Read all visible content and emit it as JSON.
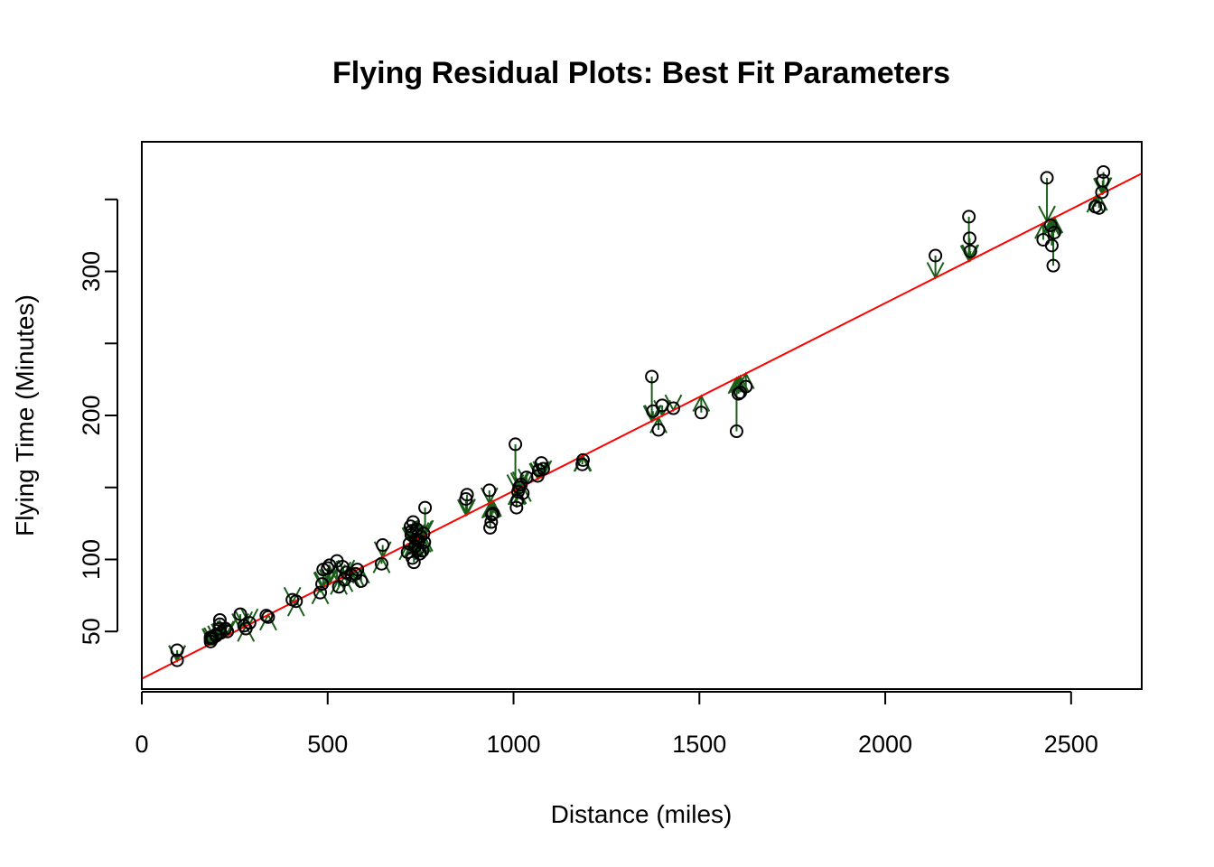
{
  "chart_data": {
    "type": "scatter",
    "title": "Flying Residual Plots: Best Fit Parameters",
    "xlabel": "Distance (miles)",
    "ylabel": "Flying Time (Minutes)",
    "xlim": [
      0,
      2690
    ],
    "ylim": [
      10,
      390
    ],
    "x_ticks": [
      0,
      500,
      1000,
      1500,
      2000,
      2500
    ],
    "x_tick_labels": [
      "0",
      "500",
      "1000",
      "1500",
      "2000",
      "2500"
    ],
    "y_ticks": [
      50,
      100,
      150,
      200,
      250,
      300,
      350
    ],
    "y_tick_labels": [
      "50",
      "100",
      "",
      "200",
      "",
      "300",
      ""
    ],
    "grid": false,
    "legend": "none",
    "colors": {
      "points": "#000000",
      "fit_line": "#ff0000",
      "residual_arrows": "#1a5e1a"
    },
    "fit_line": {
      "intercept": 17.2,
      "slope": 0.1304
    },
    "series": [
      {
        "style": "open-circle",
        "points": [
          [
            95,
            37
          ],
          [
            95,
            30
          ],
          [
            185,
            43
          ],
          [
            185,
            45
          ],
          [
            185,
            46
          ],
          [
            190,
            45
          ],
          [
            200,
            47
          ],
          [
            200,
            48
          ],
          [
            210,
            52
          ],
          [
            210,
            55
          ],
          [
            210,
            58
          ],
          [
            212,
            49
          ],
          [
            225,
            52
          ],
          [
            230,
            50
          ],
          [
            265,
            62
          ],
          [
            275,
            54
          ],
          [
            280,
            52
          ],
          [
            290,
            56
          ],
          [
            335,
            61
          ],
          [
            340,
            60
          ],
          [
            405,
            72
          ],
          [
            415,
            71
          ],
          [
            480,
            77
          ],
          [
            485,
            83
          ],
          [
            488,
            93
          ],
          [
            500,
            94
          ],
          [
            505,
            96
          ],
          [
            525,
            99
          ],
          [
            530,
            81
          ],
          [
            540,
            95
          ],
          [
            545,
            86
          ],
          [
            550,
            91
          ],
          [
            565,
            89
          ],
          [
            575,
            90
          ],
          [
            580,
            93
          ],
          [
            590,
            85
          ],
          [
            645,
            97
          ],
          [
            648,
            110
          ],
          [
            715,
            105
          ],
          [
            720,
            111
          ],
          [
            723,
            123
          ],
          [
            725,
            117
          ],
          [
            727,
            120
          ],
          [
            728,
            101
          ],
          [
            730,
            126
          ],
          [
            732,
            98
          ],
          [
            735,
            109
          ],
          [
            738,
            114
          ],
          [
            740,
            121
          ],
          [
            742,
            107
          ],
          [
            745,
            113
          ],
          [
            748,
            104
          ],
          [
            750,
            116
          ],
          [
            755,
            106
          ],
          [
            758,
            118
          ],
          [
            760,
            112
          ],
          [
            762,
            136
          ],
          [
            872,
            142
          ],
          [
            875,
            145
          ],
          [
            935,
            148
          ],
          [
            937,
            122
          ],
          [
            940,
            126
          ],
          [
            942,
            131
          ],
          [
            945,
            132
          ],
          [
            1005,
            180
          ],
          [
            1008,
            136
          ],
          [
            1010,
            141
          ],
          [
            1012,
            147
          ],
          [
            1015,
            150
          ],
          [
            1020,
            152
          ],
          [
            1025,
            146
          ],
          [
            1035,
            157
          ],
          [
            1065,
            158
          ],
          [
            1068,
            162
          ],
          [
            1075,
            167
          ],
          [
            1080,
            163
          ],
          [
            1185,
            166
          ],
          [
            1187,
            169
          ],
          [
            1372,
            227
          ],
          [
            1375,
            203
          ],
          [
            1390,
            190
          ],
          [
            1400,
            207
          ],
          [
            1430,
            205
          ],
          [
            1505,
            202
          ],
          [
            1600,
            189
          ],
          [
            1605,
            215
          ],
          [
            1610,
            216
          ],
          [
            1625,
            220
          ],
          [
            2135,
            311
          ],
          [
            2225,
            338
          ],
          [
            2227,
            323
          ],
          [
            2229,
            314
          ],
          [
            2425,
            322
          ],
          [
            2435,
            365
          ],
          [
            2445,
            332
          ],
          [
            2448,
            318
          ],
          [
            2452,
            304
          ],
          [
            2455,
            327
          ],
          [
            2565,
            345
          ],
          [
            2575,
            344
          ],
          [
            2583,
            355
          ],
          [
            2585,
            363
          ],
          [
            2587,
            369
          ]
        ]
      }
    ]
  }
}
